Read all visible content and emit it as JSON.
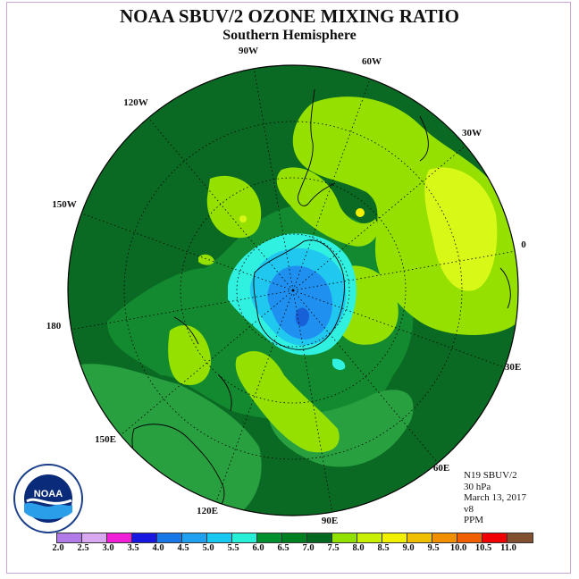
{
  "title": "NOAA SBUV/2 OZONE MIXING RATIO",
  "subtitle": "Southern Hemisphere",
  "info": {
    "line1": "N19 SBUV/2",
    "line2": "30 hPa",
    "line3": "March 13, 2017",
    "line4": "v8",
    "line5": "PPM"
  },
  "longitude_labels": [
    "90W",
    "60W",
    "30W",
    "0",
    "30E",
    "60E",
    "90E",
    "120E",
    "150E",
    "180",
    "150W",
    "120W"
  ],
  "colorbar": {
    "labels": [
      "2.0",
      "2.5",
      "3.0",
      "3.5",
      "4.0",
      "4.5",
      "5.0",
      "5.5",
      "6.0",
      "6.5",
      "7.0",
      "7.5",
      "8.0",
      "8.5",
      "9.0",
      "9.5",
      "10.0",
      "10.5",
      "11.0"
    ],
    "colors": [
      "#b07ae8",
      "#d8a8f0",
      "#f020d8",
      "#1818e0",
      "#1878e8",
      "#20a0f0",
      "#18c8f0",
      "#28f0d8",
      "#009030",
      "#008020",
      "#006820",
      "#90e000",
      "#c8f000",
      "#f0f000",
      "#f0c000",
      "#f09000",
      "#f06000",
      "#f00000",
      "#805030"
    ]
  },
  "map_colors": {
    "background_green": "#0a6a24",
    "mid_green": "#138a30",
    "light_green": "#28a040",
    "yellow_green": "#96e000",
    "yellow": "#d8f818",
    "cyan": "#30f0e0",
    "light_blue": "#20c8f0",
    "blue": "#2090f0",
    "dark_blue": "#1860d8"
  }
}
